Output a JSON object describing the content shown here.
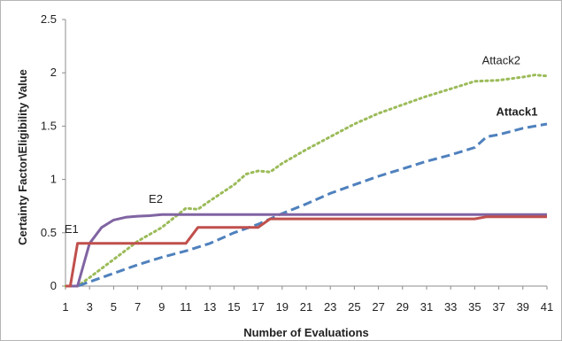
{
  "chart_data": {
    "type": "line",
    "xlabel": "Number of Evaluations",
    "ylabel": "Certainty Factor\\Eligibility Value",
    "xlim": [
      1,
      41
    ],
    "ylim": [
      0,
      2.5
    ],
    "x_ticks": [
      1,
      3,
      5,
      7,
      9,
      11,
      13,
      15,
      17,
      19,
      21,
      23,
      25,
      27,
      29,
      31,
      33,
      35,
      37,
      39,
      41
    ],
    "y_ticks": [
      0,
      0.5,
      1,
      1.5,
      2,
      2.5
    ],
    "y_tick_labels": [
      "0",
      "0.5",
      "1",
      "1.5",
      "2",
      "2.5"
    ],
    "grid": false,
    "series": [
      {
        "name": "Attack2",
        "color": "#9bbb59",
        "style": "dotted",
        "width": 3,
        "label_bold": false,
        "label_x": 37.2,
        "label_y": 2.08,
        "points": [
          [
            1,
            0
          ],
          [
            2,
            0
          ],
          [
            3,
            0.08
          ],
          [
            5,
            0.25
          ],
          [
            7,
            0.42
          ],
          [
            9,
            0.55
          ],
          [
            11,
            0.73
          ],
          [
            12,
            0.72
          ],
          [
            13,
            0.8
          ],
          [
            15,
            0.95
          ],
          [
            16,
            1.05
          ],
          [
            17,
            1.08
          ],
          [
            18,
            1.07
          ],
          [
            19,
            1.15
          ],
          [
            21,
            1.28
          ],
          [
            23,
            1.4
          ],
          [
            25,
            1.52
          ],
          [
            27,
            1.62
          ],
          [
            29,
            1.7
          ],
          [
            31,
            1.78
          ],
          [
            33,
            1.85
          ],
          [
            35,
            1.92
          ],
          [
            37,
            1.93
          ],
          [
            39,
            1.96
          ],
          [
            40,
            1.98
          ],
          [
            41,
            1.97
          ]
        ]
      },
      {
        "name": "Attack1",
        "color": "#4f81bd",
        "style": "dashed",
        "width": 3,
        "label_bold": true,
        "label_x": 38.5,
        "label_y": 1.6,
        "points": [
          [
            1,
            0
          ],
          [
            2,
            0
          ],
          [
            3,
            0.04
          ],
          [
            5,
            0.12
          ],
          [
            7,
            0.2
          ],
          [
            9,
            0.27
          ],
          [
            11,
            0.33
          ],
          [
            13,
            0.4
          ],
          [
            15,
            0.5
          ],
          [
            17,
            0.58
          ],
          [
            19,
            0.68
          ],
          [
            21,
            0.77
          ],
          [
            23,
            0.87
          ],
          [
            25,
            0.95
          ],
          [
            27,
            1.03
          ],
          [
            29,
            1.1
          ],
          [
            31,
            1.17
          ],
          [
            33,
            1.23
          ],
          [
            35,
            1.3
          ],
          [
            36,
            1.4
          ],
          [
            37,
            1.42
          ],
          [
            39,
            1.48
          ],
          [
            41,
            1.52
          ]
        ]
      },
      {
        "name": "E2",
        "color": "#8064a2",
        "style": "solid",
        "width": 3,
        "label_bold": false,
        "label_x": 8.5,
        "label_y": 0.78,
        "points": [
          [
            1,
            0
          ],
          [
            2,
            0
          ],
          [
            2.5,
            0.2
          ],
          [
            3,
            0.4
          ],
          [
            4,
            0.55
          ],
          [
            5,
            0.62
          ],
          [
            6,
            0.645
          ],
          [
            7,
            0.655
          ],
          [
            8,
            0.66
          ],
          [
            9,
            0.67
          ],
          [
            41,
            0.67
          ]
        ]
      },
      {
        "name": "E1",
        "color": "#c0504d",
        "style": "solid",
        "width": 3,
        "label_bold": false,
        "label_x": 1.5,
        "label_y": 0.5,
        "points": [
          [
            1,
            0
          ],
          [
            1.4,
            0
          ],
          [
            2,
            0.4
          ],
          [
            11,
            0.4
          ],
          [
            12,
            0.55
          ],
          [
            17,
            0.55
          ],
          [
            18,
            0.63
          ],
          [
            35,
            0.63
          ],
          [
            36,
            0.65
          ],
          [
            41,
            0.65
          ]
        ]
      }
    ]
  }
}
